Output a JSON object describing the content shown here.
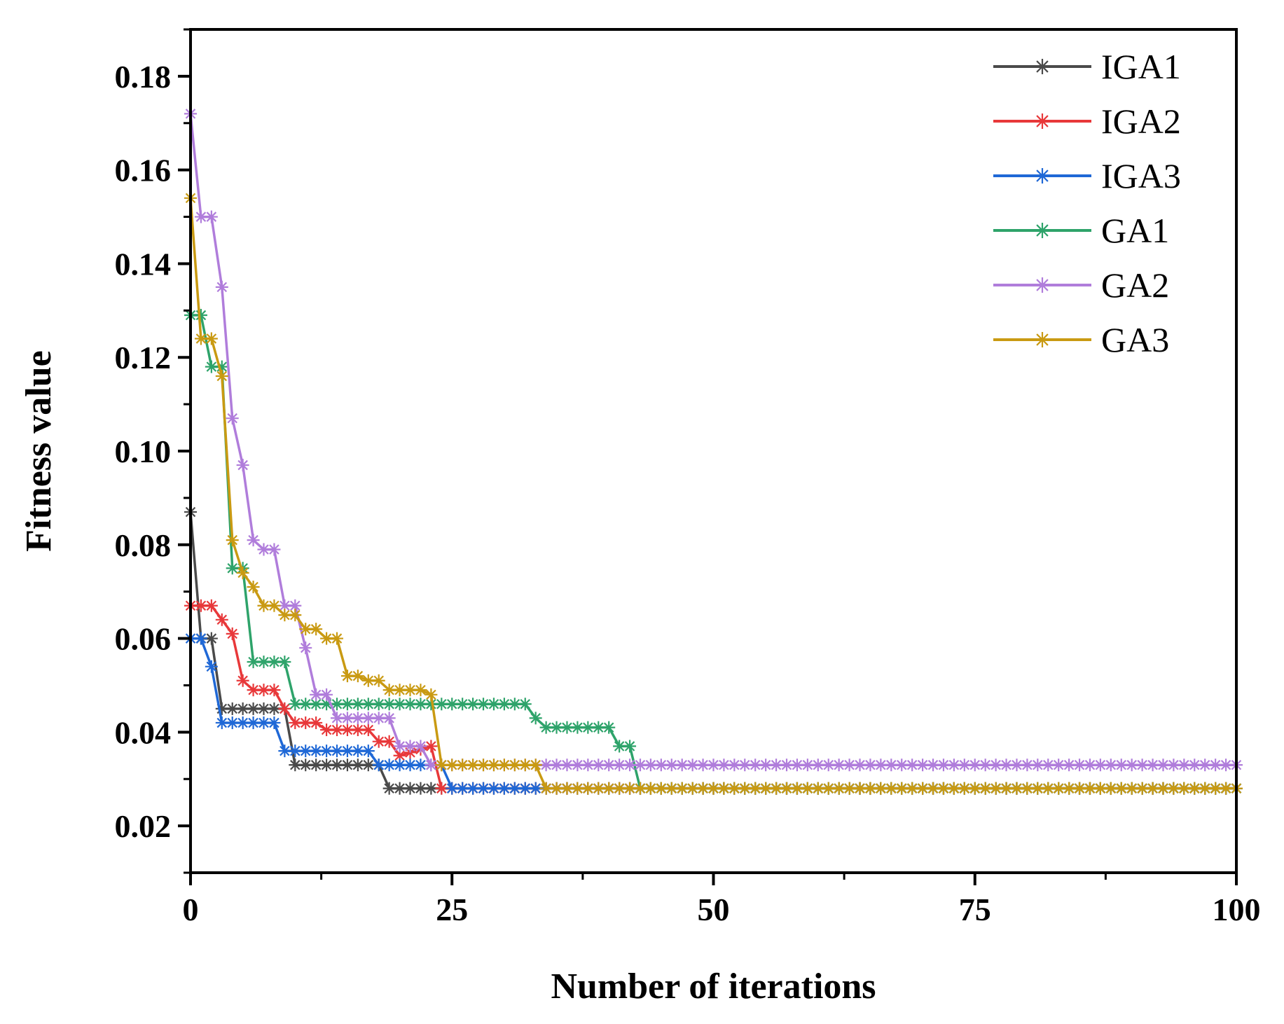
{
  "chart_data": {
    "type": "line",
    "title": "",
    "xlabel": "Number of iterations",
    "ylabel": "Fitness value",
    "xlim": [
      0,
      100
    ],
    "ylim": [
      0.01,
      0.19
    ],
    "xticks": [
      0,
      25,
      50,
      75,
      100
    ],
    "xtick_labels": [
      "0",
      "25",
      "50",
      "75",
      "100"
    ],
    "yticks": [
      0.02,
      0.04,
      0.06,
      0.08,
      0.1,
      0.12,
      0.14,
      0.16,
      0.18
    ],
    "ytick_labels": [
      "0.02",
      "0.04",
      "0.06",
      "0.08",
      "0.10",
      "0.12",
      "0.14",
      "0.16",
      "0.18"
    ],
    "grid": false,
    "legend_position": "top-right",
    "marker": "asterisk",
    "series": [
      {
        "name": "IGA1",
        "color": "#4a4a4a",
        "breakpoints": [
          [
            0,
            0.087
          ],
          [
            1,
            0.06
          ],
          [
            2,
            0.06
          ],
          [
            3,
            0.045
          ],
          [
            9,
            0.045
          ],
          [
            10,
            0.033
          ],
          [
            18,
            0.033
          ],
          [
            19,
            0.028
          ],
          [
            100,
            0.028
          ]
        ]
      },
      {
        "name": "IGA2",
        "color": "#e8383a",
        "breakpoints": [
          [
            0,
            0.067
          ],
          [
            2,
            0.067
          ],
          [
            3,
            0.064
          ],
          [
            4,
            0.061
          ],
          [
            5,
            0.051
          ],
          [
            6,
            0.049
          ],
          [
            8,
            0.049
          ],
          [
            9,
            0.045
          ],
          [
            10,
            0.042
          ],
          [
            12,
            0.042
          ],
          [
            13,
            0.0405
          ],
          [
            17,
            0.0405
          ],
          [
            18,
            0.038
          ],
          [
            19,
            0.038
          ],
          [
            20,
            0.035
          ],
          [
            23,
            0.037
          ],
          [
            24,
            0.028
          ],
          [
            100,
            0.028
          ]
        ]
      },
      {
        "name": "IGA3",
        "color": "#1f68d6",
        "breakpoints": [
          [
            0,
            0.06
          ],
          [
            1,
            0.06
          ],
          [
            2,
            0.054
          ],
          [
            3,
            0.042
          ],
          [
            8,
            0.042
          ],
          [
            9,
            0.036
          ],
          [
            17,
            0.036
          ],
          [
            18,
            0.033
          ],
          [
            24,
            0.033
          ],
          [
            25,
            0.028
          ],
          [
            100,
            0.028
          ]
        ]
      },
      {
        "name": "GA1",
        "color": "#2ea36a",
        "breakpoints": [
          [
            0,
            0.129
          ],
          [
            1,
            0.129
          ],
          [
            2,
            0.118
          ],
          [
            3,
            0.118
          ],
          [
            4,
            0.075
          ],
          [
            5,
            0.075
          ],
          [
            6,
            0.055
          ],
          [
            9,
            0.055
          ],
          [
            10,
            0.046
          ],
          [
            32,
            0.046
          ],
          [
            33,
            0.043
          ],
          [
            34,
            0.041
          ],
          [
            40,
            0.041
          ],
          [
            41,
            0.037
          ],
          [
            42,
            0.037
          ],
          [
            43,
            0.028
          ],
          [
            100,
            0.028
          ]
        ]
      },
      {
        "name": "GA2",
        "color": "#b07ddb",
        "breakpoints": [
          [
            0,
            0.172
          ],
          [
            1,
            0.15
          ],
          [
            2,
            0.15
          ],
          [
            3,
            0.135
          ],
          [
            4,
            0.107
          ],
          [
            5,
            0.097
          ],
          [
            6,
            0.081
          ],
          [
            7,
            0.079
          ],
          [
            8,
            0.079
          ],
          [
            9,
            0.067
          ],
          [
            10,
            0.067
          ],
          [
            11,
            0.058
          ],
          [
            12,
            0.048
          ],
          [
            13,
            0.048
          ],
          [
            14,
            0.043
          ],
          [
            19,
            0.043
          ],
          [
            20,
            0.037
          ],
          [
            22,
            0.037
          ],
          [
            23,
            0.033
          ],
          [
            100,
            0.033
          ]
        ]
      },
      {
        "name": "GA3",
        "color": "#c99a12",
        "breakpoints": [
          [
            0,
            0.154
          ],
          [
            1,
            0.124
          ],
          [
            2,
            0.124
          ],
          [
            3,
            0.116
          ],
          [
            4,
            0.081
          ],
          [
            5,
            0.074
          ],
          [
            6,
            0.071
          ],
          [
            7,
            0.067
          ],
          [
            8,
            0.067
          ],
          [
            9,
            0.065
          ],
          [
            10,
            0.065
          ],
          [
            11,
            0.062
          ],
          [
            12,
            0.062
          ],
          [
            13,
            0.06
          ],
          [
            14,
            0.06
          ],
          [
            15,
            0.052
          ],
          [
            16,
            0.052
          ],
          [
            17,
            0.051
          ],
          [
            18,
            0.051
          ],
          [
            19,
            0.049
          ],
          [
            22,
            0.049
          ],
          [
            23,
            0.048
          ],
          [
            24,
            0.033
          ],
          [
            33,
            0.033
          ],
          [
            34,
            0.028
          ],
          [
            100,
            0.028
          ]
        ]
      }
    ]
  }
}
